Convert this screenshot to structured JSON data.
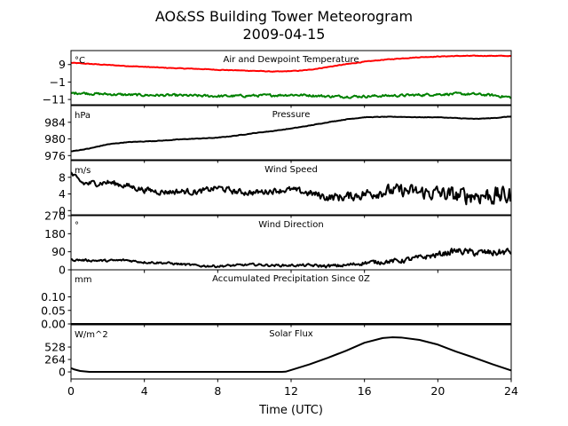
{
  "title": "AO&SS Building Tower Meteorogram",
  "subtitle": "2009-04-15",
  "chart_data": {
    "type": "line",
    "xlabel": "Time (UTC)",
    "xlim": [
      0,
      24
    ],
    "xticks": [
      0,
      4,
      8,
      12,
      16,
      20,
      24
    ],
    "panels": [
      {
        "title": "Air and Dewpoint Temperature",
        "unit": "°C",
        "ylim": [
          -14,
          17
        ],
        "yticks": [
          -11,
          -1,
          9
        ],
        "yticklabels": [
          "−11",
          "−1",
          "9"
        ],
        "series": [
          {
            "color": "#ff0000",
            "noise": 0.15,
            "x": [
              0,
              1,
              2,
              3,
              4,
              5,
              6,
              7,
              8,
              9,
              10,
              11,
              11.5,
              12,
              12.5,
              13,
              14,
              15,
              16,
              17,
              18,
              19,
              20,
              21,
              22,
              23,
              24
            ],
            "y": [
              10,
              9.4,
              8.8,
              8.2,
              7.7,
              7.2,
              6.8,
              6.5,
              6.0,
              5.7,
              5.4,
              5.0,
              5.0,
              5.3,
              5.5,
              6.0,
              7.6,
              9.2,
              10.6,
              11.7,
              12.5,
              13.2,
              13.6,
              13.9,
              14.0,
              14.0,
              13.9
            ]
          },
          {
            "color": "#008000",
            "noise": 0.6,
            "x": [
              0,
              0.5,
              1,
              2,
              3,
              4,
              5,
              6,
              7,
              8,
              9,
              10,
              11,
              12,
              13,
              14,
              15,
              16,
              17,
              18,
              19,
              20,
              21,
              22,
              23,
              24
            ],
            "y": [
              -7.5,
              -7.2,
              -7.6,
              -8.0,
              -8.3,
              -8.5,
              -8.6,
              -8.7,
              -8.9,
              -9.1,
              -9.0,
              -8.8,
              -8.6,
              -8.3,
              -8.6,
              -9.2,
              -9.3,
              -9.2,
              -8.9,
              -8.7,
              -8.4,
              -8.0,
              -7.8,
              -8.0,
              -8.6,
              -9.8
            ]
          }
        ]
      },
      {
        "title": "Pressure",
        "unit": "hPa",
        "ylim": [
          975,
          988
        ],
        "yticks": [
          976,
          980,
          984
        ],
        "yticklabels": [
          "976",
          "980",
          "984"
        ],
        "series": [
          {
            "color": "#000000",
            "noise": 0.05,
            "x": [
              0,
              1,
              2,
              3,
              4,
              5,
              6,
              7,
              8,
              9,
              10,
              11,
              12,
              13,
              14,
              15,
              16,
              17,
              18,
              19,
              20,
              21,
              22,
              23,
              24
            ],
            "y": [
              977.0,
              977.7,
              978.7,
              979.2,
              979.4,
              979.6,
              979.9,
              980.1,
              980.3,
              980.8,
              981.4,
              981.9,
              982.5,
              983.2,
              984.0,
              984.7,
              985.2,
              985.3,
              985.3,
              985.2,
              985.2,
              985.0,
              984.8,
              985.0,
              985.4
            ]
          }
        ]
      },
      {
        "title": "Wind Speed",
        "unit": "m/s",
        "ylim": [
          -1,
          12
        ],
        "yticks": [
          0,
          4,
          8
        ],
        "yticklabels": [
          "0",
          "4",
          "8"
        ],
        "series": [
          {
            "color": "#000000",
            "noise": 1.0,
            "noiseGrow": true,
            "x": [
              0,
              0.3,
              0.7,
              1,
              2,
              3,
              4,
              5,
              6,
              7,
              8,
              9,
              10,
              11,
              12,
              13,
              14,
              15,
              16,
              17,
              18,
              19,
              20,
              21,
              22,
              23,
              24
            ],
            "y": [
              9,
              7.5,
              6.5,
              6.5,
              6.8,
              6.0,
              5.0,
              4.5,
              4.6,
              4.5,
              5.5,
              4.5,
              4.3,
              4.8,
              5.0,
              4.2,
              3.2,
              3.3,
              4.0,
              4.6,
              4.8,
              4.3,
              4.2,
              3.5,
              3.8,
              3.6,
              3.5
            ]
          }
        ]
      },
      {
        "title": "Wind Direction",
        "unit": "°",
        "ylim": [
          0,
          270
        ],
        "yticks": [
          0,
          90,
          180,
          270
        ],
        "yticklabels": [
          "0",
          "90",
          "180",
          "270"
        ],
        "series": [
          {
            "color": "#000000",
            "noise": 8,
            "noiseGrow": true,
            "x": [
              0,
              1,
              2,
              3,
              4,
              5,
              6,
              7,
              8,
              9,
              10,
              11,
              12,
              13,
              14,
              15,
              16,
              17,
              18,
              19,
              20,
              21,
              22,
              23,
              24
            ],
            "y": [
              50,
              47,
              45,
              48,
              38,
              35,
              28,
              20,
              18,
              22,
              26,
              22,
              22,
              22,
              18,
              22,
              35,
              40,
              45,
              60,
              75,
              95,
              85,
              85,
              90
            ]
          }
        ]
      },
      {
        "title": "Accumulated Precipitation Since 0Z",
        "unit": "mm",
        "ylim": [
          0,
          0.2
        ],
        "yticks": [
          0,
          0.05,
          0.1
        ],
        "yticklabels": [
          "0.00",
          "0.05",
          "0.10"
        ],
        "series": [
          {
            "color": "#000000",
            "noise": 0,
            "x": [
              0,
              24
            ],
            "y": [
              0,
              0
            ]
          }
        ]
      },
      {
        "title": "Solar Flux",
        "unit": "W/m^2",
        "ylim": [
          -150,
          1000
        ],
        "yticks": [
          0,
          264,
          528
        ],
        "yticklabels": [
          "0",
          "264",
          "528"
        ],
        "series": [
          {
            "color": "#000000",
            "noise": 0,
            "x": [
              0,
              0.2,
              0.5,
              1,
              11.5,
              11.7,
              12,
              13,
              14,
              15,
              16,
              17,
              17.5,
              18,
              19,
              20,
              21,
              22,
              23,
              24
            ],
            "y": [
              80,
              50,
              20,
              0,
              0,
              5,
              40,
              160,
              300,
              450,
              620,
              720,
              735,
              730,
              680,
              580,
              430,
              300,
              160,
              30
            ]
          }
        ]
      }
    ]
  }
}
